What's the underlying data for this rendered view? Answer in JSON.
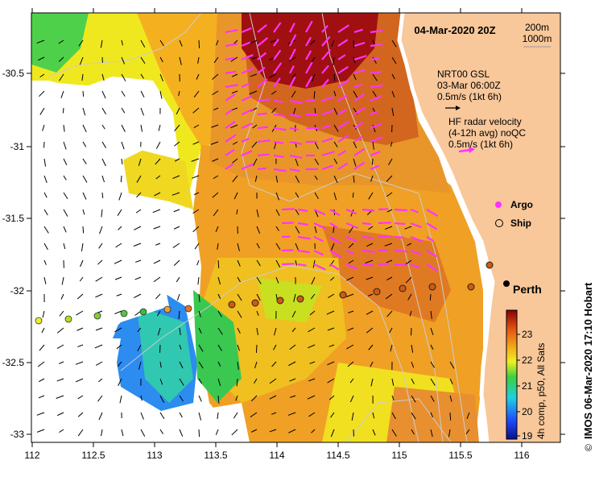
{
  "map": {
    "title": "04-Mar-2020 20Z",
    "scale_labels": [
      "200m",
      "1000m"
    ],
    "place_label": "Perth",
    "credit": "IMOS 06-Mar-2020 17:10 Hobart",
    "copyright_symbol": "©",
    "lon_ticks": [
      "112",
      "112.5",
      "113",
      "113.5",
      "114",
      "114.5",
      "115",
      "115.5",
      "116"
    ],
    "lat_ticks": [
      "-30.5",
      "-31",
      "-31.5",
      "-32",
      "-32.5",
      "-33"
    ],
    "legend": {
      "gsl_lines": [
        "NRT00 GSL",
        "03-Mar 06:00Z",
        "0.5m/s (1kt 6h)"
      ],
      "hf_lines": [
        "HF radar velocity",
        "(4-12h avg) noQC",
        "0.5m/s (1kt 6h)"
      ],
      "argo_label": "Argo",
      "ship_label": "Ship"
    },
    "colorbar": {
      "ticks": [
        "23",
        "22",
        "21",
        "20",
        "19"
      ],
      "label": "4h comp, p50, All Sats"
    },
    "colors": {
      "land": "#f8c79a",
      "argo": "#ff33ff",
      "hf_vector": "#ff33ff",
      "gsl_vector": "#000000",
      "contour": "#cccccc"
    }
  }
}
